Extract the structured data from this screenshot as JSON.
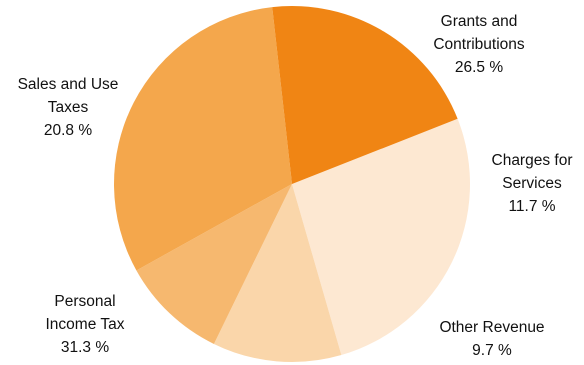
{
  "chart_data": {
    "type": "pie",
    "slices": [
      {
        "label_lines": [
          "Grants and",
          "Contributions"
        ],
        "value_text": "26.5 %",
        "value": 26.5,
        "color": "#fde8d2"
      },
      {
        "label_lines": [
          "Charges for",
          "Services"
        ],
        "value_text": "11.7 %",
        "value": 11.7,
        "color": "#fad6aa"
      },
      {
        "label_lines": [
          "Other Revenue"
        ],
        "value_text": "9.7 %",
        "value": 9.7,
        "color": "#f6b86f"
      },
      {
        "label_lines": [
          "Personal",
          "Income Tax"
        ],
        "value_text": "31.3 %",
        "value": 31.3,
        "color": "#f4a74c"
      },
      {
        "label_lines": [
          "Sales and Use",
          "Taxes"
        ],
        "value_text": "20.8 %",
        "value": 20.8,
        "color": "#f08514"
      }
    ],
    "start_angle_deg": -21.5,
    "direction": "clockwise"
  }
}
